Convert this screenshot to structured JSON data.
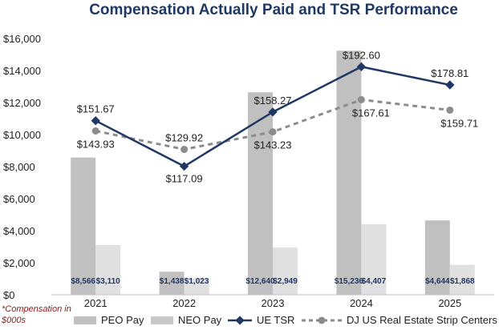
{
  "chart_data": {
    "type": "bar",
    "title": "Compensation Actually Paid and TSR Performance",
    "categories": [
      "2021",
      "2022",
      "2023",
      "2024",
      "2025"
    ],
    "y_axis": {
      "min": 0,
      "max": 16000,
      "step": 2000,
      "tick_labels": [
        "$0",
        "$2,000",
        "$4,000",
        "$6,000",
        "$8,000",
        "$10,000",
        "$12,000",
        "$14,000",
        "$16,000"
      ]
    },
    "series": [
      {
        "name": "PEO Pay",
        "kind": "bar",
        "color": "#c0c0c0",
        "values": [
          8566,
          1438,
          12640,
          15236,
          4644
        ],
        "labels": [
          "$8,566",
          "$1,438",
          "$12,640",
          "$15,236",
          "$4,644"
        ]
      },
      {
        "name": "NEO Pay",
        "kind": "bar",
        "color": "#e0e0e0",
        "values": [
          3110,
          1023,
          2949,
          4407,
          1868
        ],
        "labels": [
          "$3,110",
          "$1,023",
          "$2,949",
          "$4,407",
          "$1,868"
        ]
      },
      {
        "name": "UE TSR",
        "kind": "line",
        "color": "#1f3864",
        "values": [
          151.67,
          117.09,
          158.27,
          192.6,
          178.81
        ],
        "labels": [
          "$151.67",
          "$117.09",
          "$158.27",
          "$192.60",
          "$178.81"
        ]
      },
      {
        "name": "DJ US Real Estate Strip Centers",
        "kind": "dashed-line",
        "color": "#8c8c8c",
        "values": [
          143.93,
          129.92,
          143.23,
          167.61,
          159.71
        ],
        "labels": [
          "$143.93",
          "$129.92",
          "$143.23",
          "$167.61",
          "$159.71"
        ]
      }
    ],
    "footnote": [
      "*Compensation in",
      "$000s"
    ]
  }
}
